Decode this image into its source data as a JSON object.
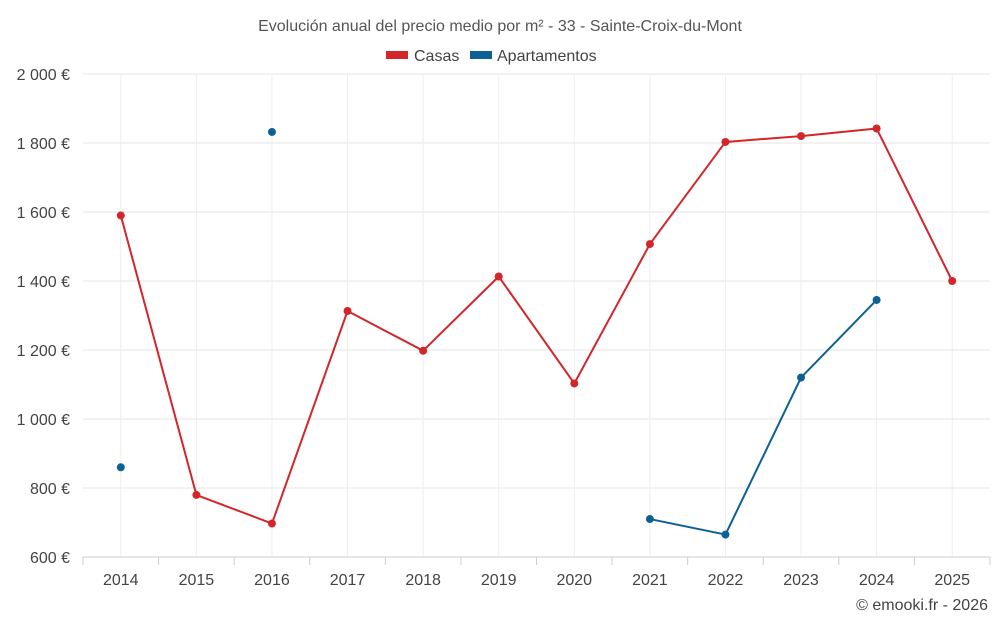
{
  "chart_data": {
    "type": "line",
    "title": "Evolución anual del precio medio por m² - 33 - Sainte-Croix-du-Mont",
    "categories": [
      "2014",
      "2015",
      "2016",
      "2017",
      "2018",
      "2019",
      "2020",
      "2021",
      "2022",
      "2023",
      "2024",
      "2025"
    ],
    "ylim": [
      600,
      2000
    ],
    "yticks": [
      600,
      800,
      1000,
      1200,
      1400,
      1600,
      1800,
      2000
    ],
    "ytick_labels": [
      "600 €",
      "800 €",
      "1 000 €",
      "1 200 €",
      "1 400 €",
      "1 600 €",
      "1 800 €",
      "2 000 €"
    ],
    "grid": true,
    "legend_position": "top-center",
    "series": [
      {
        "name": "Casas",
        "color": "#d3262a",
        "values": [
          1590,
          780,
          697,
          1313,
          1198,
          1413,
          1103,
          1507,
          1803,
          1820,
          1842,
          1400
        ]
      },
      {
        "name": "Apartamentos",
        "color": "#0b6196",
        "values": [
          860,
          null,
          1832,
          null,
          null,
          null,
          null,
          710,
          665,
          1120,
          1345,
          null
        ]
      }
    ],
    "credit": "© emooki.fr - 2026"
  }
}
